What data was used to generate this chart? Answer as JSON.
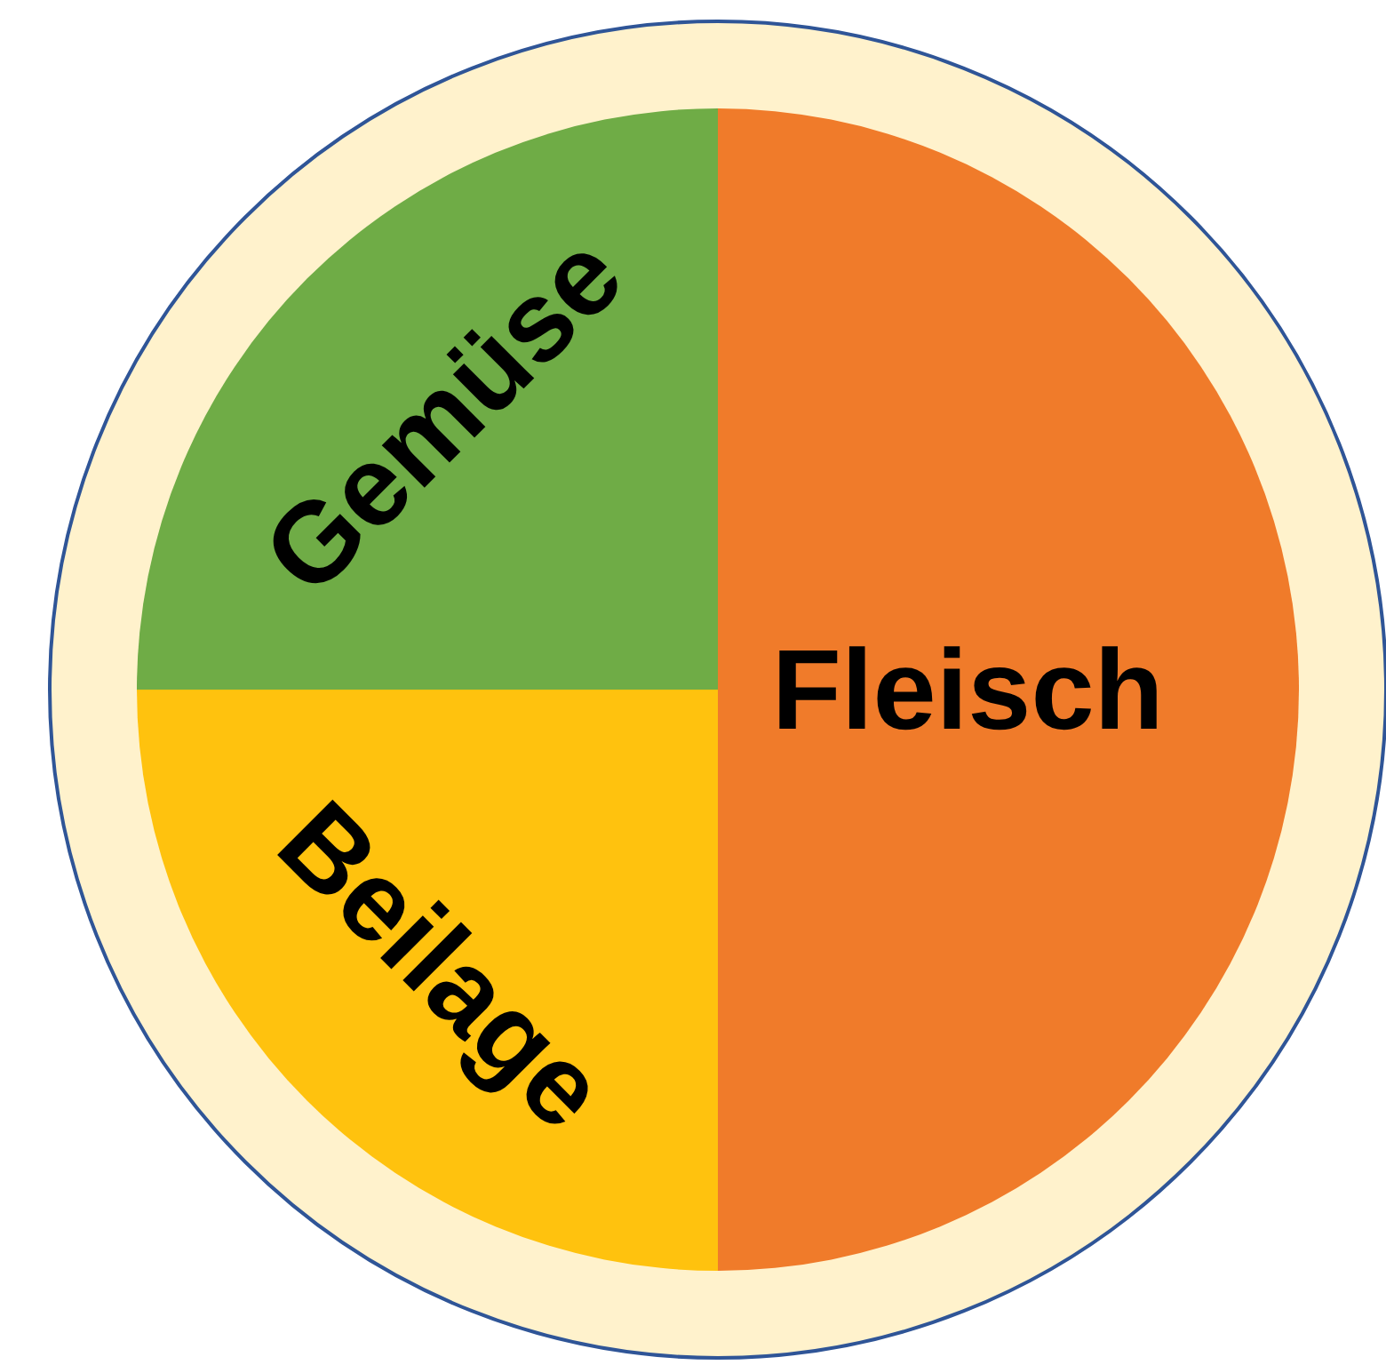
{
  "chart_data": {
    "type": "pie",
    "categories": [
      "Fleisch",
      "Beilage",
      "Gemüse"
    ],
    "values": [
      50,
      25,
      25
    ],
    "colors": [
      "#f07b2a",
      "#ffc20e",
      "#6fac46"
    ]
  }
}
